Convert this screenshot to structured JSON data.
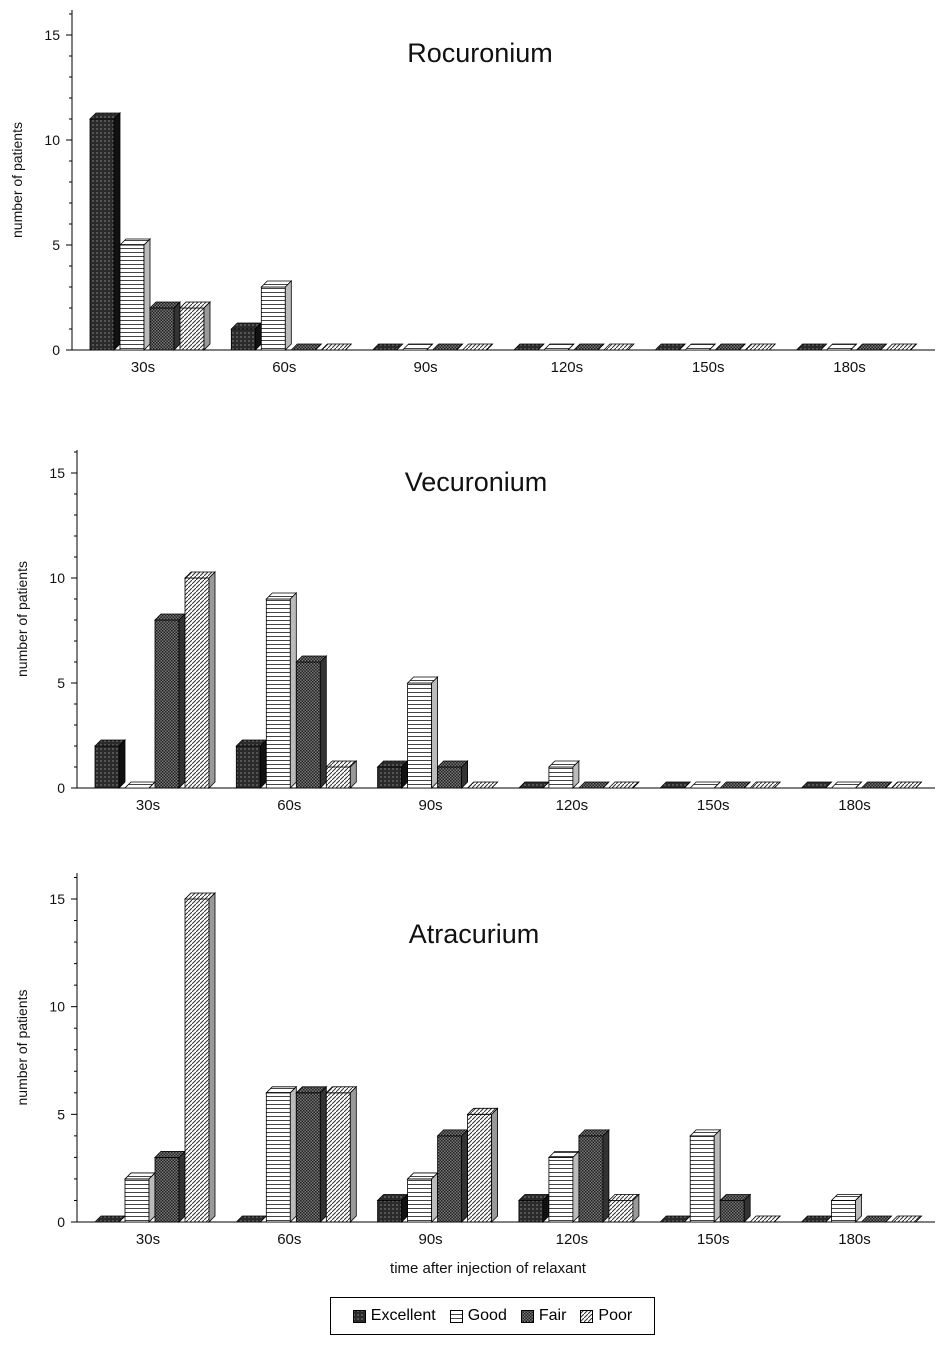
{
  "chart_data": [
    {
      "type": "bar",
      "title": "Rocuronium",
      "categories": [
        "30s",
        "60s",
        "90s",
        "120s",
        "150s",
        "180s"
      ],
      "ylabel": "number of patients",
      "xlabel": "",
      "ylim": [
        0,
        15
      ],
      "yticks": [
        "0",
        "5",
        "10",
        "15"
      ],
      "series": [
        {
          "name": "Excellent",
          "values": [
            11,
            1,
            0,
            0,
            0,
            0
          ]
        },
        {
          "name": "Good",
          "values": [
            5,
            3,
            0,
            0,
            0,
            0
          ]
        },
        {
          "name": "Fair",
          "values": [
            2,
            0,
            0,
            0,
            0,
            0
          ]
        },
        {
          "name": "Poor",
          "values": [
            2,
            0,
            0,
            0,
            0,
            0
          ]
        }
      ]
    },
    {
      "type": "bar",
      "title": "Vecuronium",
      "categories": [
        "30s",
        "60s",
        "90s",
        "120s",
        "150s",
        "180s"
      ],
      "ylabel": "number of patients",
      "xlabel": "",
      "ylim": [
        0,
        15
      ],
      "yticks": [
        "0",
        "5",
        "10",
        "15"
      ],
      "series": [
        {
          "name": "Excellent",
          "values": [
            2,
            2,
            1,
            0,
            0,
            0
          ]
        },
        {
          "name": "Good",
          "values": [
            0,
            9,
            5,
            1,
            0,
            0
          ]
        },
        {
          "name": "Fair",
          "values": [
            8,
            6,
            1,
            0,
            0,
            0
          ]
        },
        {
          "name": "Poor",
          "values": [
            10,
            1,
            0,
            0,
            0,
            0
          ]
        }
      ]
    },
    {
      "type": "bar",
      "title": "Atracurium",
      "categories": [
        "30s",
        "60s",
        "90s",
        "120s",
        "150s",
        "180s"
      ],
      "ylabel": "number of patients",
      "xlabel": "time after injection of relaxant",
      "ylim": [
        0,
        15
      ],
      "yticks": [
        "0",
        "5",
        "10",
        "15"
      ],
      "series": [
        {
          "name": "Excellent",
          "values": [
            0,
            0,
            1,
            1,
            0,
            0
          ]
        },
        {
          "name": "Good",
          "values": [
            2,
            6,
            2,
            3,
            4,
            1
          ]
        },
        {
          "name": "Fair",
          "values": [
            3,
            6,
            4,
            4,
            1,
            0
          ]
        },
        {
          "name": "Poor",
          "values": [
            15,
            6,
            5,
            1,
            0,
            0
          ]
        }
      ]
    }
  ],
  "legend": {
    "placement": "bottom-center",
    "items": [
      "Excellent",
      "Good",
      "Fair",
      "Poor"
    ]
  }
}
